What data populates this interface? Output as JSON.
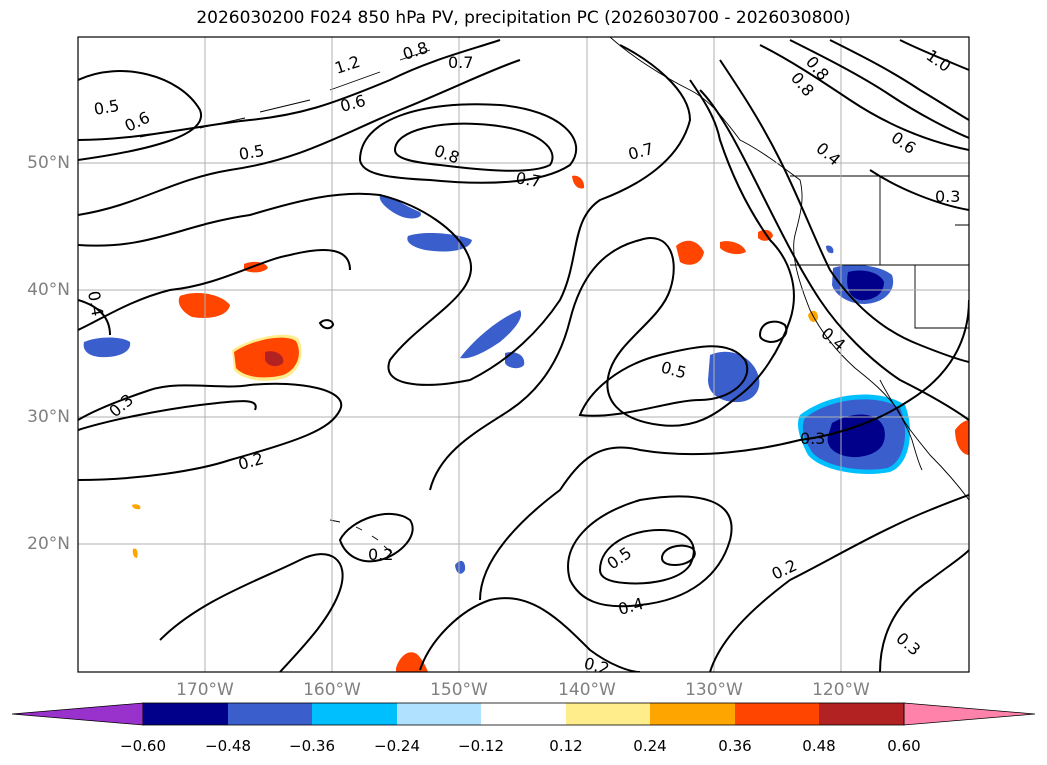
{
  "title": "2026030200 F024 850 hPa PV, precipitation PC (2026030700 - 2026030800)",
  "latitude_labels": [
    "50°N",
    "40°N",
    "30°N",
    "20°N"
  ],
  "longitude_labels": [
    "170°W",
    "160°W",
    "150°W",
    "140°W",
    "130°W",
    "120°W"
  ],
  "contour_labels": [
    "1.2",
    "1.0",
    "0.8",
    "0.7",
    "0.6",
    "0.5",
    "0.4",
    "0.3",
    "0.2"
  ],
  "colorbar": {
    "tick_labels": [
      "−0.60",
      "−0.48",
      "−0.36",
      "−0.24",
      "−0.12",
      "0.12",
      "0.24",
      "0.36",
      "0.48",
      "0.60"
    ],
    "colors": [
      "#9932cc",
      "#00008b",
      "#3a5fcd",
      "#00bfff",
      "#b0e2ff",
      "#ffffff",
      "#ffec8b",
      "#ffa500",
      "#ff4500",
      "#b22222",
      "#ff82ab"
    ]
  },
  "colors": {
    "negative_fill": "#3a5fcd",
    "strong_negative_fill": "#00008b",
    "positive_fill": "#ff4500",
    "strong_positive_fill": "#b22222",
    "contour": "#000000",
    "gridline": "#b0b0b0",
    "axis_label": "#808080"
  }
}
